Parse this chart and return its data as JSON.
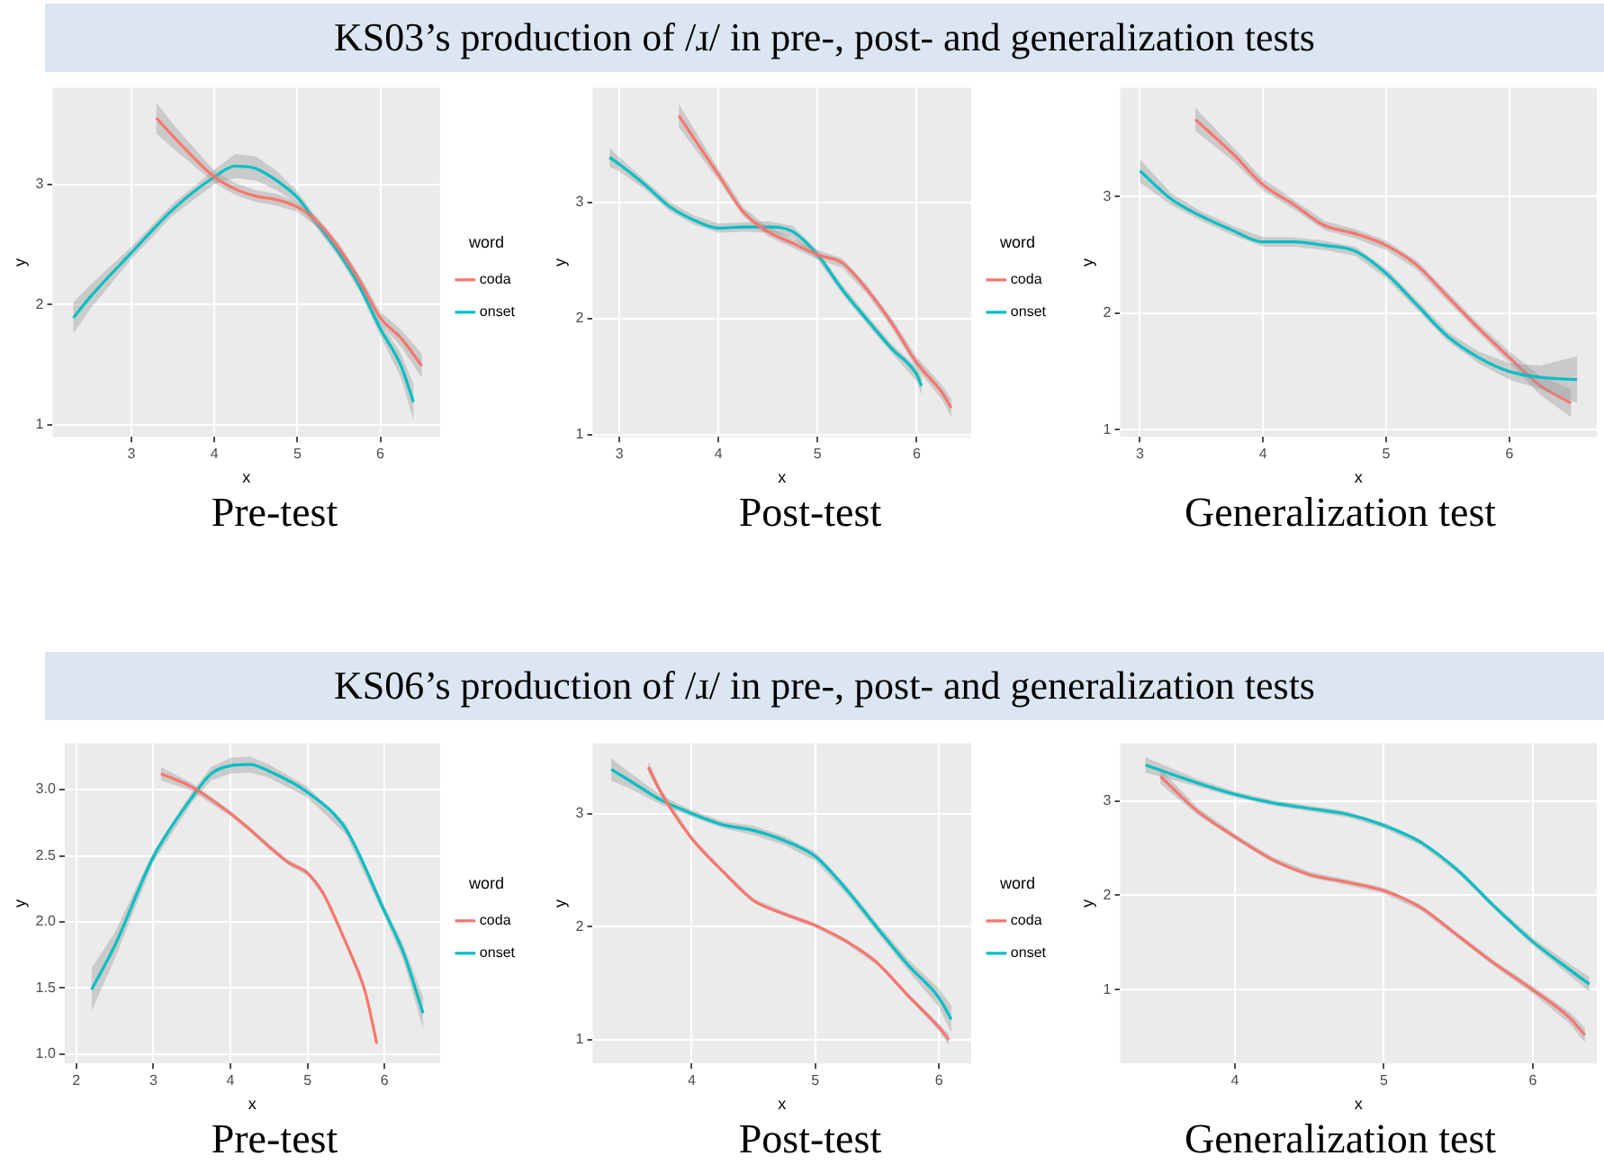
{
  "chart_data": [
    {
      "type": "line",
      "title": "KS03’s production of /ɹ/ in pre-, post- and generalization tests",
      "xlabel": "x",
      "ylabel": "y",
      "legend_title": "word",
      "legend": "right",
      "grid": true,
      "annotations": [
        "Pre-test"
      ],
      "xlim": [
        2.05,
        6.72
      ],
      "ylim": [
        0.9,
        3.8
      ],
      "xticks": [
        3,
        4,
        5,
        6
      ],
      "yticks": [
        1,
        2,
        3
      ],
      "series": [
        {
          "name": "coda",
          "color": "#f8766d",
          "x": [
            3.3,
            3.5,
            4,
            4.25,
            4.5,
            4.75,
            5,
            5.25,
            5.5,
            5.75,
            6,
            6.25,
            6.5
          ],
          "values": [
            3.55,
            3.4,
            3.06,
            2.96,
            2.9,
            2.87,
            2.81,
            2.68,
            2.47,
            2.2,
            1.89,
            1.72,
            1.49
          ],
          "lower": [
            3.42,
            3.3,
            3.01,
            2.91,
            2.85,
            2.82,
            2.77,
            2.64,
            2.43,
            2.16,
            1.84,
            1.65,
            1.39
          ],
          "upper": [
            3.68,
            3.5,
            3.11,
            3.01,
            2.95,
            2.92,
            2.85,
            2.72,
            2.51,
            2.24,
            1.94,
            1.79,
            1.59
          ]
        },
        {
          "name": "onset",
          "color": "#00bfc4",
          "x": [
            2.3,
            2.5,
            3,
            3.5,
            4,
            4.25,
            4.5,
            4.75,
            5,
            5.25,
            5.5,
            5.75,
            6,
            6.25,
            6.4
          ],
          "values": [
            1.89,
            2.06,
            2.43,
            2.79,
            3.06,
            3.15,
            3.13,
            3.03,
            2.89,
            2.66,
            2.43,
            2.15,
            1.8,
            1.49,
            1.19
          ],
          "lower": [
            1.76,
            1.96,
            2.38,
            2.74,
            3.0,
            3.05,
            3.03,
            2.95,
            2.84,
            2.62,
            2.39,
            2.11,
            1.74,
            1.39,
            1.04
          ],
          "upper": [
            2.02,
            2.16,
            2.48,
            2.84,
            3.12,
            3.25,
            3.23,
            3.11,
            2.94,
            2.7,
            2.47,
            2.19,
            1.86,
            1.59,
            1.34
          ]
        }
      ]
    },
    {
      "type": "line",
      "xlabel": "x",
      "ylabel": "y",
      "legend_title": "word",
      "legend": "right",
      "grid": true,
      "annotations": [
        "Post-test"
      ],
      "xlim": [
        2.73,
        6.55
      ],
      "ylim": [
        0.98,
        3.99
      ],
      "xticks": [
        3,
        4,
        5,
        6
      ],
      "yticks": [
        1,
        2,
        3
      ],
      "series": [
        {
          "name": "coda",
          "color": "#f8766d",
          "x": [
            3.6,
            4,
            4.25,
            4.5,
            4.75,
            5,
            5.25,
            5.5,
            5.75,
            6,
            6.25,
            6.35
          ],
          "values": [
            3.75,
            3.24,
            2.92,
            2.75,
            2.65,
            2.55,
            2.48,
            2.25,
            1.96,
            1.62,
            1.37,
            1.23
          ],
          "lower": [
            3.65,
            3.19,
            2.88,
            2.71,
            2.61,
            2.51,
            2.44,
            2.21,
            1.92,
            1.57,
            1.31,
            1.15
          ],
          "upper": [
            3.85,
            3.29,
            2.96,
            2.79,
            2.69,
            2.59,
            2.52,
            2.29,
            2.0,
            1.67,
            1.43,
            1.31
          ]
        },
        {
          "name": "onset",
          "color": "#00bfc4",
          "x": [
            2.9,
            3,
            3.25,
            3.5,
            3.75,
            4,
            4.25,
            4.5,
            4.75,
            5,
            5.25,
            5.5,
            5.75,
            6,
            6.05
          ],
          "values": [
            3.39,
            3.33,
            3.16,
            2.97,
            2.85,
            2.78,
            2.79,
            2.79,
            2.75,
            2.55,
            2.25,
            1.99,
            1.74,
            1.52,
            1.42
          ],
          "lower": [
            3.31,
            3.27,
            3.12,
            2.93,
            2.81,
            2.74,
            2.75,
            2.74,
            2.7,
            2.51,
            2.21,
            1.95,
            1.7,
            1.46,
            1.34
          ],
          "upper": [
            3.47,
            3.39,
            3.2,
            3.01,
            2.89,
            2.82,
            2.83,
            2.84,
            2.8,
            2.59,
            2.29,
            2.03,
            1.78,
            1.58,
            1.5
          ]
        }
      ]
    },
    {
      "type": "line",
      "xlabel": "x",
      "ylabel": "y",
      "grid": true,
      "annotations": [
        "Generalization test"
      ],
      "xlim": [
        2.84,
        6.71
      ],
      "ylim": [
        0.94,
        3.93
      ],
      "xticks": [
        3,
        4,
        5,
        6
      ],
      "yticks": [
        1,
        2,
        3
      ],
      "series": [
        {
          "color": "#00bfc4",
          "x": [
            3,
            3.25,
            3.5,
            3.75,
            4,
            4.25,
            4.5,
            4.75,
            5,
            5.25,
            5.5,
            5.75,
            6,
            6.25,
            6.55
          ],
          "values": [
            3.22,
            2.98,
            2.83,
            2.71,
            2.61,
            2.61,
            2.58,
            2.53,
            2.34,
            2.07,
            1.8,
            1.62,
            1.5,
            1.45,
            1.43
          ],
          "lower": [
            3.12,
            2.93,
            2.79,
            2.67,
            2.57,
            2.57,
            2.54,
            2.49,
            2.3,
            2.03,
            1.76,
            1.57,
            1.43,
            1.35,
            1.23
          ],
          "upper": [
            3.32,
            3.03,
            2.87,
            2.75,
            2.65,
            2.65,
            2.62,
            2.57,
            2.38,
            2.11,
            1.84,
            1.67,
            1.57,
            1.55,
            1.63
          ]
        },
        {
          "color": "#f8766d",
          "x": [
            3.45,
            3.75,
            4,
            4.25,
            4.5,
            4.75,
            5,
            5.25,
            5.5,
            5.75,
            6,
            6.25,
            6.5
          ],
          "values": [
            3.66,
            3.37,
            3.1,
            2.93,
            2.75,
            2.68,
            2.58,
            2.41,
            2.14,
            1.87,
            1.62,
            1.38,
            1.23
          ],
          "lower": [
            3.56,
            3.31,
            3.05,
            2.89,
            2.71,
            2.64,
            2.54,
            2.37,
            2.1,
            1.83,
            1.57,
            1.3,
            1.11
          ],
          "upper": [
            3.76,
            3.43,
            3.15,
            2.97,
            2.79,
            2.72,
            2.62,
            2.45,
            2.18,
            1.91,
            1.67,
            1.46,
            1.35
          ]
        }
      ]
    },
    {
      "type": "line",
      "title": "KS06’s production of /ɹ/ in pre-, post- and generalization tests",
      "xlabel": "x",
      "ylabel": "y",
      "legend_title": "word",
      "legend": "right",
      "grid": true,
      "annotations": [
        "Pre-test"
      ],
      "xlim": [
        1.85,
        6.72
      ],
      "ylim": [
        0.93,
        3.35
      ],
      "xticks": [
        2,
        3,
        4,
        5,
        6
      ],
      "yticks": [
        {
          "value": 1,
          "label": "1.0"
        },
        1.5,
        {
          "value": 2,
          "label": "2.0"
        },
        2.5,
        {
          "value": 3,
          "label": "3.0"
        }
      ],
      "series": [
        {
          "name": "coda",
          "color": "#f8766d",
          "x": [
            3.1,
            3.5,
            4,
            4.25,
            4.5,
            4.75,
            5,
            5.2,
            5.5,
            5.75,
            5.9
          ],
          "values": [
            3.12,
            3.02,
            2.82,
            2.7,
            2.57,
            2.45,
            2.37,
            2.22,
            1.84,
            1.47,
            1.08
          ],
          "lower": [
            3.07,
            2.99,
            2.8,
            2.68,
            2.55,
            2.43,
            2.35,
            2.2,
            1.82,
            1.45,
            1.06
          ],
          "upper": [
            3.17,
            3.05,
            2.84,
            2.72,
            2.59,
            2.47,
            2.39,
            2.24,
            1.86,
            1.49,
            1.1
          ]
        },
        {
          "name": "onset",
          "color": "#00bfc4",
          "x": [
            2.2,
            2.5,
            3,
            3.5,
            3.75,
            4,
            4.25,
            4.5,
            5,
            5.5,
            6,
            6.25,
            6.5
          ],
          "values": [
            1.49,
            1.82,
            2.49,
            2.94,
            3.12,
            3.18,
            3.19,
            3.14,
            2.98,
            2.7,
            2.08,
            1.76,
            1.31
          ],
          "lower": [
            1.33,
            1.72,
            2.45,
            2.9,
            3.07,
            3.12,
            3.13,
            3.09,
            2.94,
            2.66,
            2.04,
            1.7,
            1.19
          ],
          "upper": [
            1.65,
            1.92,
            2.53,
            2.98,
            3.17,
            3.24,
            3.25,
            3.19,
            3.02,
            2.74,
            2.12,
            1.82,
            1.43
          ]
        }
      ]
    },
    {
      "type": "line",
      "xlabel": "x",
      "ylabel": "y",
      "legend_title": "word",
      "legend": "right",
      "grid": true,
      "annotations": [
        "Post-test"
      ],
      "xlim": [
        3.2,
        6.26
      ],
      "ylim": [
        0.79,
        3.62
      ],
      "xticks": [
        4,
        5,
        6
      ],
      "yticks": [
        1,
        2,
        3
      ],
      "series": [
        {
          "name": "coda",
          "color": "#f8766d",
          "x": [
            3.65,
            3.75,
            4,
            4.25,
            4.5,
            4.75,
            5,
            5.25,
            5.5,
            5.75,
            6,
            6.08
          ],
          "values": [
            3.41,
            3.19,
            2.78,
            2.49,
            2.23,
            2.11,
            2.01,
            1.87,
            1.68,
            1.39,
            1.11,
            1.0
          ],
          "lower": [
            3.36,
            3.16,
            2.76,
            2.47,
            2.21,
            2.09,
            1.99,
            1.85,
            1.66,
            1.37,
            1.08,
            0.95
          ],
          "upper": [
            3.46,
            3.22,
            2.8,
            2.51,
            2.25,
            2.13,
            2.03,
            1.89,
            1.7,
            1.41,
            1.14,
            1.05
          ]
        },
        {
          "name": "onset",
          "color": "#00bfc4",
          "x": [
            3.35,
            3.5,
            3.75,
            4,
            4.25,
            4.5,
            4.75,
            5,
            5.25,
            5.5,
            5.75,
            6,
            6.1
          ],
          "values": [
            3.39,
            3.29,
            3.12,
            3.0,
            2.9,
            2.85,
            2.76,
            2.62,
            2.33,
            1.99,
            1.66,
            1.37,
            1.18
          ],
          "lower": [
            3.29,
            3.22,
            3.08,
            2.97,
            2.87,
            2.81,
            2.72,
            2.58,
            2.29,
            1.95,
            1.61,
            1.29,
            1.06
          ],
          "upper": [
            3.49,
            3.36,
            3.16,
            3.03,
            2.93,
            2.89,
            2.8,
            2.66,
            2.37,
            2.03,
            1.71,
            1.45,
            1.3
          ]
        }
      ]
    },
    {
      "type": "line",
      "xlabel": "x",
      "ylabel": "y",
      "grid": true,
      "annotations": [
        "Generalization test"
      ],
      "xlim": [
        3.23,
        6.43
      ],
      "ylim": [
        0.22,
        3.61
      ],
      "xticks": [
        4,
        5,
        6
      ],
      "yticks": [
        1,
        2,
        3
      ],
      "series": [
        {
          "color": "#f8766d",
          "x": [
            3.5,
            3.75,
            4,
            4.25,
            4.5,
            4.75,
            5,
            5.25,
            5.5,
            5.75,
            6,
            6.25,
            6.35
          ],
          "values": [
            3.26,
            2.89,
            2.62,
            2.38,
            2.22,
            2.14,
            2.05,
            1.87,
            1.57,
            1.27,
            1.0,
            0.7,
            0.52
          ],
          "lower": [
            3.18,
            2.85,
            2.59,
            2.35,
            2.19,
            2.11,
            2.02,
            1.84,
            1.54,
            1.24,
            0.96,
            0.64,
            0.44
          ],
          "upper": [
            3.34,
            2.93,
            2.65,
            2.41,
            2.25,
            2.17,
            2.08,
            1.9,
            1.6,
            1.3,
            1.04,
            0.76,
            0.6
          ]
        },
        {
          "color": "#00bfc4",
          "x": [
            3.4,
            3.75,
            4,
            4.25,
            4.5,
            4.75,
            5,
            5.25,
            5.5,
            5.75,
            6,
            6.25,
            6.38
          ],
          "values": [
            3.38,
            3.19,
            3.07,
            2.98,
            2.92,
            2.86,
            2.74,
            2.56,
            2.26,
            1.87,
            1.51,
            1.21,
            1.06
          ],
          "lower": [
            3.3,
            3.15,
            3.04,
            2.95,
            2.89,
            2.83,
            2.71,
            2.53,
            2.23,
            1.84,
            1.47,
            1.15,
            0.98
          ],
          "upper": [
            3.46,
            3.23,
            3.1,
            3.01,
            2.95,
            2.89,
            2.77,
            2.59,
            2.29,
            1.9,
            1.55,
            1.27,
            1.14
          ]
        }
      ]
    }
  ]
}
